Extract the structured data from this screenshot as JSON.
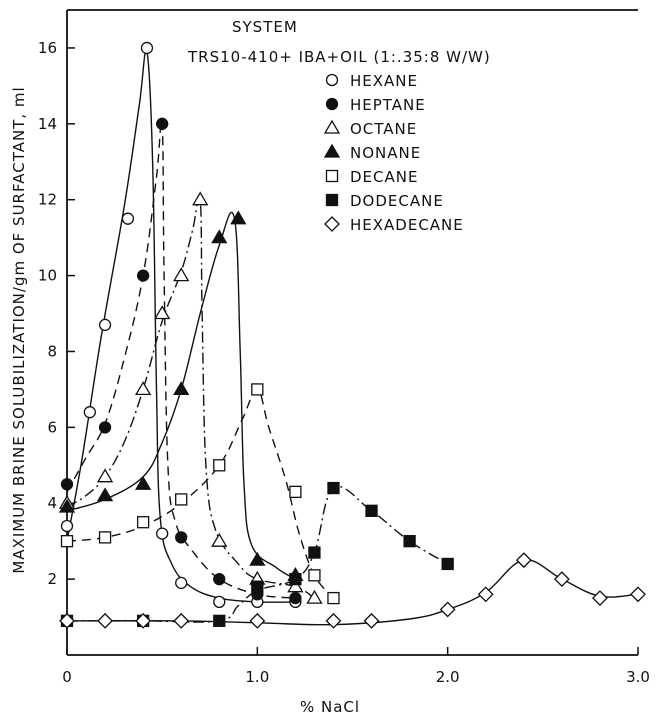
{
  "chart_data": {
    "type": "line",
    "title": "SYSTEM",
    "subtitle": "TRS10-410+ IBA+OIL (1:.35:8  W/W)",
    "xlabel": "% NaCl",
    "ylabel": "MAXIMUM BRINE SOLUBILIZATION/gm OF SURFACTANT, ml",
    "xlim": [
      0,
      3.0
    ],
    "ylim": [
      0,
      17
    ],
    "xticks": [
      0,
      1.0,
      2.0,
      3.0
    ],
    "xtick_labels": [
      "0",
      "1.0",
      "2.0",
      "3.0"
    ],
    "yticks": [
      2,
      4,
      6,
      8,
      10,
      12,
      14,
      16
    ],
    "ytick_labels": [
      "2",
      "4",
      "6",
      "8",
      "10",
      "12",
      "14",
      "16"
    ],
    "grid": false,
    "legend_position": "top-right",
    "series": [
      {
        "name": "HEXANE",
        "marker": "circle-open",
        "line_style": "solid",
        "points": [
          [
            0,
            3.4
          ],
          [
            0.12,
            6.4
          ],
          [
            0.2,
            8.7
          ],
          [
            0.32,
            11.5
          ],
          [
            0.42,
            16.0
          ],
          [
            0.5,
            3.2
          ],
          [
            0.6,
            1.9
          ],
          [
            0.8,
            1.4
          ],
          [
            1.0,
            1.4
          ],
          [
            1.2,
            1.4
          ]
        ],
        "curve": [
          [
            0,
            3.0
          ],
          [
            0.08,
            5.2
          ],
          [
            0.18,
            8.4
          ],
          [
            0.3,
            11.8
          ],
          [
            0.38,
            14.5
          ],
          [
            0.42,
            15.9
          ],
          [
            0.45,
            13.0
          ],
          [
            0.47,
            7.0
          ],
          [
            0.49,
            3.6
          ],
          [
            0.55,
            2.4
          ],
          [
            0.65,
            1.8
          ],
          [
            0.8,
            1.5
          ],
          [
            1.0,
            1.4
          ],
          [
            1.2,
            1.4
          ]
        ]
      },
      {
        "name": "HEPTANE",
        "marker": "circle-filled",
        "line_style": "dashed",
        "points": [
          [
            0,
            4.5
          ],
          [
            0.2,
            6.0
          ],
          [
            0.4,
            10.0
          ],
          [
            0.5,
            14.0
          ],
          [
            0.6,
            3.1
          ],
          [
            0.8,
            2.0
          ],
          [
            1.0,
            1.6
          ],
          [
            1.2,
            1.5
          ]
        ],
        "curve": [
          [
            0,
            4.3
          ],
          [
            0.1,
            5.2
          ],
          [
            0.2,
            6.1
          ],
          [
            0.3,
            7.8
          ],
          [
            0.4,
            10.0
          ],
          [
            0.47,
            12.6
          ],
          [
            0.5,
            14.0
          ],
          [
            0.51,
            10.0
          ],
          [
            0.53,
            5.0
          ],
          [
            0.57,
            3.5
          ],
          [
            0.65,
            2.8
          ],
          [
            0.8,
            2.0
          ],
          [
            1.0,
            1.6
          ],
          [
            1.2,
            1.5
          ]
        ]
      },
      {
        "name": "OCTANE",
        "marker": "triangle-open",
        "line_style": "dash-dot",
        "points": [
          [
            0,
            4.0
          ],
          [
            0.2,
            4.7
          ],
          [
            0.4,
            7.0
          ],
          [
            0.5,
            9.0
          ],
          [
            0.6,
            10.0
          ],
          [
            0.7,
            12.0
          ],
          [
            0.8,
            3.0
          ],
          [
            1.0,
            2.0
          ],
          [
            1.2,
            1.8
          ],
          [
            1.3,
            1.5
          ]
        ],
        "curve": [
          [
            0,
            3.9
          ],
          [
            0.1,
            4.2
          ],
          [
            0.2,
            4.7
          ],
          [
            0.3,
            5.6
          ],
          [
            0.4,
            7.0
          ],
          [
            0.5,
            8.8
          ],
          [
            0.6,
            10.1
          ],
          [
            0.66,
            11.2
          ],
          [
            0.7,
            12.0
          ],
          [
            0.71,
            9.0
          ],
          [
            0.73,
            5.0
          ],
          [
            0.78,
            3.3
          ],
          [
            0.9,
            2.4
          ],
          [
            1.0,
            2.0
          ],
          [
            1.2,
            1.8
          ],
          [
            1.3,
            1.5
          ]
        ]
      },
      {
        "name": "NONANE",
        "marker": "triangle-filled",
        "line_style": "solid",
        "points": [
          [
            0,
            3.9
          ],
          [
            0.2,
            4.2
          ],
          [
            0.4,
            4.5
          ],
          [
            0.6,
            7.0
          ],
          [
            0.8,
            11.0
          ],
          [
            0.9,
            11.5
          ],
          [
            1.0,
            2.5
          ],
          [
            1.2,
            2.1
          ]
        ],
        "curve": [
          [
            0,
            3.8
          ],
          [
            0.2,
            4.1
          ],
          [
            0.4,
            4.7
          ],
          [
            0.5,
            5.6
          ],
          [
            0.6,
            7.0
          ],
          [
            0.7,
            9.0
          ],
          [
            0.8,
            10.8
          ],
          [
            0.88,
            11.5
          ],
          [
            0.91,
            8.0
          ],
          [
            0.93,
            4.5
          ],
          [
            0.97,
            2.9
          ],
          [
            1.1,
            2.3
          ],
          [
            1.2,
            2.0
          ]
        ]
      },
      {
        "name": "DECANE",
        "marker": "square-open",
        "line_style": "dashed",
        "points": [
          [
            0,
            3.0
          ],
          [
            0.2,
            3.1
          ],
          [
            0.4,
            3.5
          ],
          [
            0.6,
            4.1
          ],
          [
            0.8,
            5.0
          ],
          [
            1.0,
            7.0
          ],
          [
            1.2,
            4.3
          ],
          [
            1.3,
            2.1
          ],
          [
            1.4,
            1.5
          ]
        ],
        "curve": [
          [
            0,
            3.0
          ],
          [
            0.2,
            3.1
          ],
          [
            0.4,
            3.4
          ],
          [
            0.6,
            4.0
          ],
          [
            0.8,
            5.0
          ],
          [
            0.92,
            6.2
          ],
          [
            1.0,
            7.0
          ],
          [
            1.06,
            6.0
          ],
          [
            1.15,
            4.6
          ],
          [
            1.22,
            3.2
          ],
          [
            1.3,
            2.1
          ],
          [
            1.4,
            1.5
          ]
        ]
      },
      {
        "name": "DODECANE",
        "marker": "square-filled",
        "line_style": "dash-dot",
        "points": [
          [
            0,
            0.9
          ],
          [
            0.4,
            0.9
          ],
          [
            0.8,
            0.9
          ],
          [
            1.0,
            1.8
          ],
          [
            1.2,
            2.0
          ],
          [
            1.3,
            2.7
          ],
          [
            1.4,
            4.4
          ],
          [
            1.6,
            3.8
          ],
          [
            1.8,
            3.0
          ],
          [
            2.0,
            2.4
          ]
        ],
        "curve": [
          [
            0,
            0.9
          ],
          [
            0.4,
            0.9
          ],
          [
            0.8,
            0.9
          ],
          [
            0.9,
            1.3
          ],
          [
            1.0,
            1.7
          ],
          [
            1.2,
            2.0
          ],
          [
            1.3,
            2.7
          ],
          [
            1.4,
            4.4
          ],
          [
            1.6,
            3.8
          ],
          [
            1.8,
            3.0
          ],
          [
            2.0,
            2.4
          ]
        ]
      },
      {
        "name": "HEXADECANE",
        "marker": "diamond-open",
        "line_style": "solid",
        "points": [
          [
            0,
            0.9
          ],
          [
            0.2,
            0.9
          ],
          [
            0.4,
            0.9
          ],
          [
            0.6,
            0.9
          ],
          [
            1.0,
            0.9
          ],
          [
            1.4,
            0.9
          ],
          [
            1.6,
            0.9
          ],
          [
            2.0,
            1.2
          ],
          [
            2.2,
            1.6
          ],
          [
            2.4,
            2.5
          ],
          [
            2.6,
            2.0
          ],
          [
            2.8,
            1.5
          ],
          [
            3.0,
            1.6
          ]
        ],
        "curve": [
          [
            0,
            0.9
          ],
          [
            0.6,
            0.9
          ],
          [
            1.0,
            0.85
          ],
          [
            1.4,
            0.8
          ],
          [
            1.8,
            0.95
          ],
          [
            2.0,
            1.2
          ],
          [
            2.2,
            1.65
          ],
          [
            2.4,
            2.5
          ],
          [
            2.6,
            2.0
          ],
          [
            2.8,
            1.55
          ],
          [
            3.0,
            1.6
          ]
        ]
      }
    ]
  }
}
